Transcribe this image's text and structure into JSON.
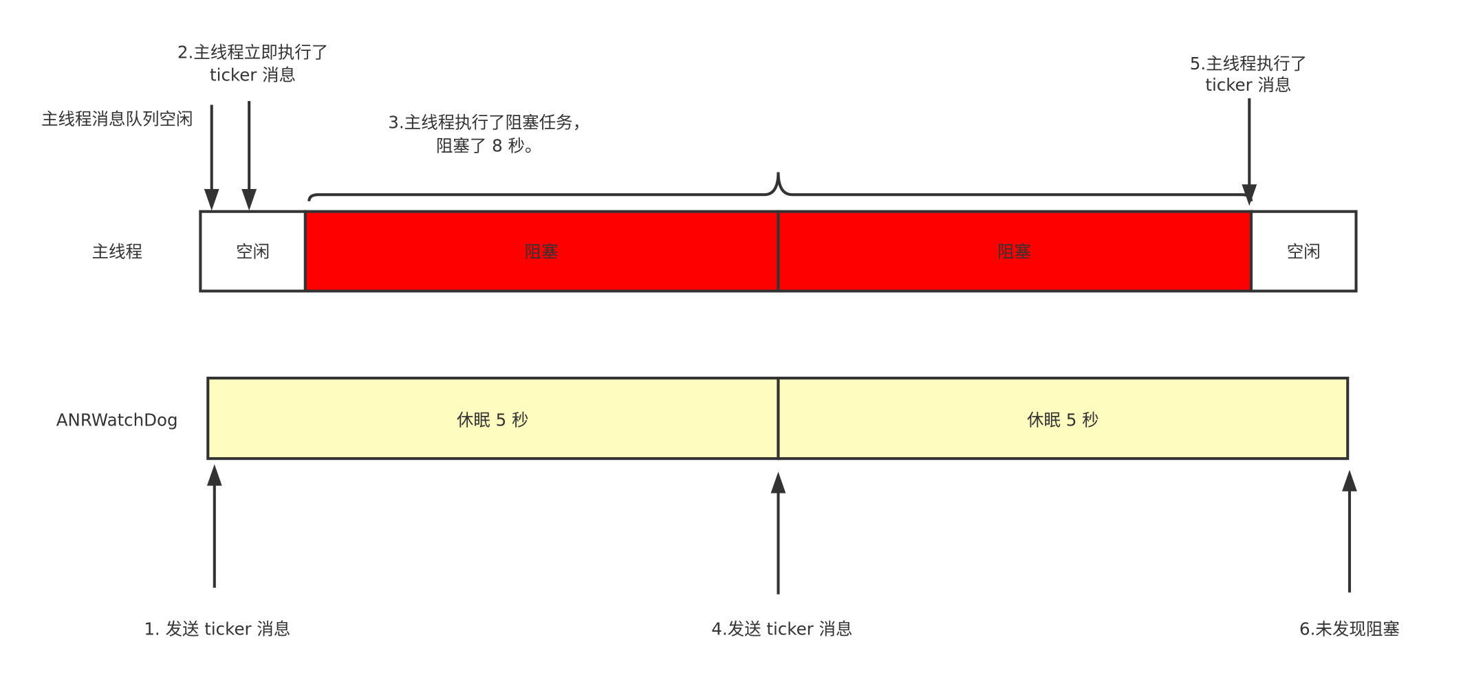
{
  "main_thread": {
    "label": "主线程",
    "segments": [
      "空闲",
      "阻塞",
      "阻塞",
      "空闲"
    ]
  },
  "watchdog": {
    "label": "ANRWatchDog",
    "segments": [
      "休眠 5 秒",
      "休眠 5 秒"
    ]
  },
  "annotations": {
    "queue_idle": "主线程消息队列空闲",
    "step2": [
      "2.主线程立即执行了",
      "ticker 消息"
    ],
    "step3": [
      "3.主线程执行了阻塞任务，",
      "阻塞了 8 秒。"
    ],
    "step5": [
      "5.主线程执行了",
      "ticker 消息"
    ],
    "step1": "1. 发送 ticker 消息",
    "step4": "4.发送 ticker 消息",
    "step6": "6.未发现阻塞"
  }
}
